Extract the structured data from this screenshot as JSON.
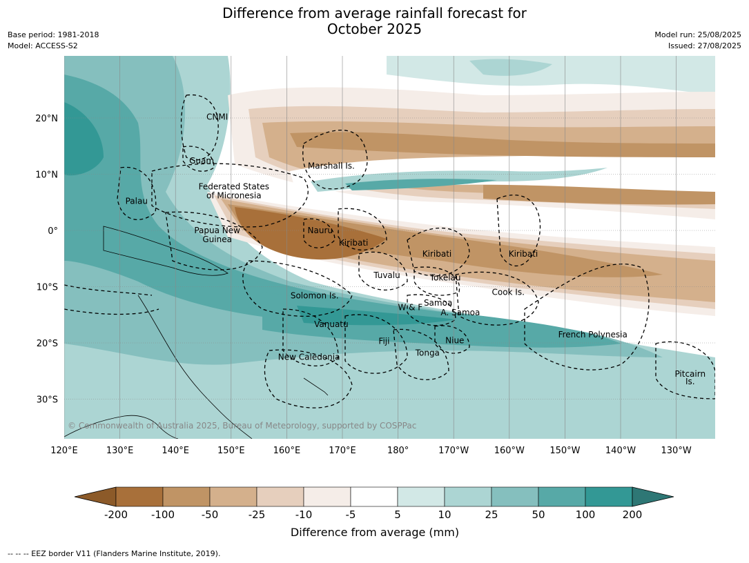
{
  "title_line1": "Difference from average rainfall forecast for",
  "title_line2": "October 2025",
  "meta_left": [
    "Base period: 1981-2018",
    "Model: ACCESS-S2"
  ],
  "meta_right": [
    "Model run: 25/08/2025",
    "Issued: 27/08/2025"
  ],
  "copyright": "© Commonwealth of Australia 2025, Bureau of Meteorology, supported by COSPPac",
  "lon_ticks": [
    "120°E",
    "130°E",
    "140°E",
    "150°E",
    "160°E",
    "170°E",
    "180°",
    "170°W",
    "160°W",
    "150°W",
    "140°W",
    "130°W"
  ],
  "lat_ticks": [
    "20°N",
    "10°N",
    "0°",
    "10°S",
    "20°S",
    "30°S"
  ],
  "regions": [
    {
      "label": "CNMI",
      "lon": 147.5,
      "lat": 20.2
    },
    {
      "label": "Guam",
      "lon": 144.7,
      "lat": 12.4
    },
    {
      "label": "Marshall Is.",
      "lon": 168.0,
      "lat": 11.5
    },
    {
      "label": "Federated States",
      "lon": 150.5,
      "lat": 7.8
    },
    {
      "label": "of Micronesia",
      "lon": 150.5,
      "lat": 6.2
    },
    {
      "label": "Palau",
      "lon": 133.0,
      "lat": 5.2
    },
    {
      "label": "Papua New",
      "lon": 147.5,
      "lat": 0.0
    },
    {
      "label": "Guinea",
      "lon": 147.5,
      "lat": -1.6
    },
    {
      "label": "Nauru",
      "lon": 166.0,
      "lat": 0.0
    },
    {
      "label": "Kiribati",
      "lon": 172.0,
      "lat": -2.2
    },
    {
      "label": "Kiribati",
      "lon": -173.0,
      "lat": -4.2
    },
    {
      "label": "Kiribati",
      "lon": -157.5,
      "lat": -4.2
    },
    {
      "label": "Tuvalu",
      "lon": 178.0,
      "lat": -8.0
    },
    {
      "label": "Tokelau",
      "lon": -171.5,
      "lat": -8.4
    },
    {
      "label": "Cook Is.",
      "lon": -160.2,
      "lat": -11.0
    },
    {
      "label": "Solomon Is.",
      "lon": 165.0,
      "lat": -11.6
    },
    {
      "label": "Samoa",
      "lon": -172.8,
      "lat": -12.9
    },
    {
      "label": "W & F",
      "lon": -177.8,
      "lat": -13.7
    },
    {
      "label": "A. Samoa",
      "lon": -168.8,
      "lat": -14.6
    },
    {
      "label": "Vanuatu",
      "lon": 168.0,
      "lat": -16.7
    },
    {
      "label": "French Polynesia",
      "lon": -145.0,
      "lat": -18.5
    },
    {
      "label": "Fiji",
      "lon": 177.5,
      "lat": -19.7
    },
    {
      "label": "Niue",
      "lon": -169.8,
      "lat": -19.6
    },
    {
      "label": "Tonga",
      "lon": -174.7,
      "lat": -21.8
    },
    {
      "label": "New Caledonia",
      "lon": 164.0,
      "lat": -22.5
    },
    {
      "label": "Pitcairn",
      "lon": -127.5,
      "lat": -25.5
    },
    {
      "label": "Is.",
      "lon": -127.5,
      "lat": -26.9
    }
  ],
  "colorbar": {
    "colors": [
      "#8c5a29",
      "#a8703a",
      "#c09465",
      "#d4b08c",
      "#e6cfbd",
      "#f5ede8",
      "#ffffff",
      "#d2e8e6",
      "#acd5d3",
      "#85bfbe",
      "#57a9a7",
      "#339895",
      "#2e7775"
    ],
    "tick_labels": [
      "-200",
      "-100",
      "-50",
      "-25",
      "-10",
      "-5",
      "5",
      "10",
      "25",
      "50",
      "100",
      "200"
    ],
    "label": "Difference from average (mm)"
  },
  "footer": "--  --  -- EEZ border V11 (Flanders Marine Institute, 2019)."
}
